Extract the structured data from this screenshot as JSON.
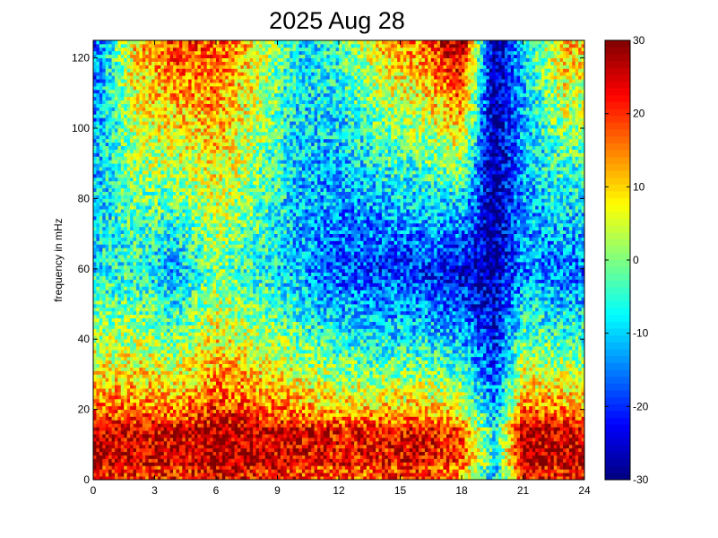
{
  "chart_data": {
    "type": "heatmap",
    "title": "2025 Aug 28",
    "xlabel": "",
    "ylabel": "frequency in mHz",
    "x_ticks": [
      0,
      3,
      6,
      9,
      12,
      15,
      18,
      21,
      24
    ],
    "y_ticks": [
      0,
      20,
      40,
      60,
      80,
      100,
      120
    ],
    "xlim": [
      0,
      24
    ],
    "ylim": [
      0,
      125
    ],
    "colorbar": {
      "colormap": "jet",
      "range": [
        -30,
        30
      ],
      "ticks": [
        30,
        20,
        10,
        0,
        -10,
        -20,
        -30
      ]
    },
    "description_of_values": "time-frequency power spectrogram; strongest power at low frequencies (below ~15 mHz) across the day, saturated high values (30) at high frequencies during hours ~2-4, ~6-8 and ~17-19.5, with a minimum band near 19.5-20h",
    "hourly_profile": [
      {
        "hour": 0,
        "low_band": 26,
        "mid_band": -8,
        "high_band": -18
      },
      {
        "hour": 2,
        "low_band": 25,
        "mid_band": -6,
        "high_band": 10
      },
      {
        "hour": 4,
        "low_band": 24,
        "mid_band": -12,
        "high_band": 20
      },
      {
        "hour": 6,
        "low_band": 28,
        "mid_band": 0,
        "high_band": 18
      },
      {
        "hour": 8,
        "low_band": 26,
        "mid_band": -6,
        "high_band": 8
      },
      {
        "hour": 10,
        "low_band": 24,
        "mid_band": -12,
        "high_band": -8
      },
      {
        "hour": 12,
        "low_band": 22,
        "mid_band": -18,
        "high_band": -4
      },
      {
        "hour": 14,
        "low_band": 22,
        "mid_band": -20,
        "high_band": 10
      },
      {
        "hour": 16,
        "low_band": 24,
        "mid_band": -20,
        "high_band": 16
      },
      {
        "hour": 18,
        "low_band": 18,
        "mid_band": -24,
        "high_band": 30
      },
      {
        "hour": 19.6,
        "low_band": -8,
        "mid_band": -28,
        "high_band": -30
      },
      {
        "hour": 21,
        "low_band": 27,
        "mid_band": -14,
        "high_band": -10
      },
      {
        "hour": 23,
        "low_band": 26,
        "mid_band": -16,
        "high_band": 12
      },
      {
        "hour": 24,
        "low_band": 25,
        "mid_band": -16,
        "high_band": 10
      }
    ]
  }
}
